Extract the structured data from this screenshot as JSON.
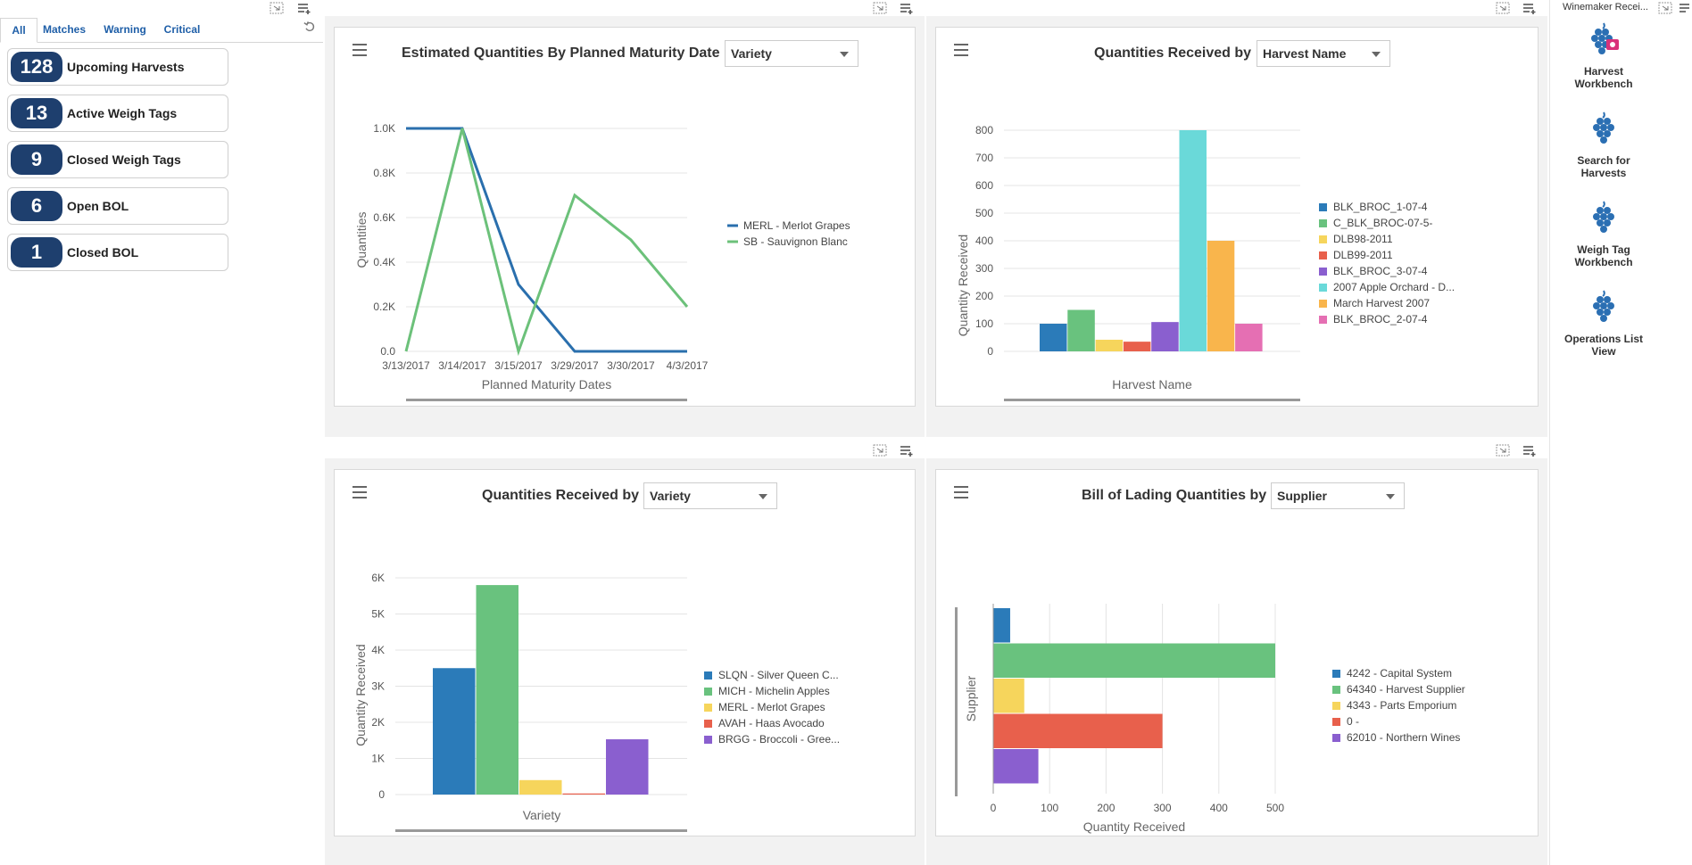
{
  "filters": {
    "tabs": [
      {
        "label": "All"
      },
      {
        "label": "Matches"
      },
      {
        "label": "Warning"
      },
      {
        "label": "Critical"
      }
    ]
  },
  "kpis": [
    {
      "value": "128",
      "label": "Upcoming Harvests"
    },
    {
      "value": "13",
      "label": "Active Weigh Tags"
    },
    {
      "value": "9",
      "label": "Closed Weigh Tags"
    },
    {
      "value": "6",
      "label": "Open BOL"
    },
    {
      "value": "1",
      "label": "Closed BOL"
    }
  ],
  "panels": {
    "p1": {
      "title": "Estimated Quantities By Planned Maturity Date",
      "select": "Variety"
    },
    "p2": {
      "title": "Quantities Received by",
      "select": "Harvest Name"
    },
    "p3": {
      "title": "Quantities Received by",
      "select": "Variety"
    },
    "p4": {
      "title": "Bill of Lading Quantities by",
      "select": "Supplier"
    }
  },
  "quick_launch": {
    "title": "Winemaker Recei...",
    "items": [
      {
        "line1": "Harvest",
        "line2": "Workbench"
      },
      {
        "line1": "Search for",
        "line2": "Harvests"
      },
      {
        "line1": "Weigh Tag",
        "line2": "Workbench"
      },
      {
        "line1": "Operations List",
        "line2": "View"
      }
    ]
  },
  "chart_data": [
    {
      "id": "chart1",
      "type": "line",
      "title": "Estimated Quantities By Planned Maturity Date",
      "xlabel": "Planned Maturity Dates",
      "ylabel": "Quantities",
      "categories": [
        "3/13/2017",
        "3/14/2017",
        "3/15/2017",
        "3/29/2017",
        "3/30/2017",
        "4/3/2017"
      ],
      "ylim": [
        0,
        1000
      ],
      "yticks": [
        0,
        200,
        400,
        600,
        800,
        1000
      ],
      "ytick_labels": [
        "0.0",
        "0.2K",
        "0.4K",
        "0.6K",
        "0.8K",
        "1.0K"
      ],
      "series": [
        {
          "name": "MERL - Merlot Grapes",
          "color": "#2a6fad",
          "values": [
            1000,
            1000,
            300,
            0,
            0,
            0
          ]
        },
        {
          "name": "SB - Sauvignon Blanc",
          "color": "#6cc17a",
          "values": [
            0,
            1000,
            0,
            700,
            500,
            200
          ]
        }
      ]
    },
    {
      "id": "chart2",
      "type": "bar",
      "title": "Quantities Received by Harvest Name",
      "xlabel": "Harvest Name",
      "ylabel": "Quantity Received",
      "ylim": [
        0,
        800
      ],
      "yticks": [
        0,
        100,
        200,
        300,
        400,
        500,
        600,
        700,
        800
      ],
      "series": [
        {
          "name": "BLK_BROC_1-07-4",
          "color": "#2b7bb9",
          "value": 100
        },
        {
          "name": "C_BLK_BROC-07-5-",
          "color": "#69c27e",
          "value": 150
        },
        {
          "name": "DLB98-2011",
          "color": "#f6d55c",
          "value": 42
        },
        {
          "name": "DLB99-2011",
          "color": "#e8604c",
          "value": 35
        },
        {
          "name": "BLK_BROC_3-07-4",
          "color": "#8a5fcf",
          "value": 106
        },
        {
          "name": "2007 Apple Orchard - D...",
          "color": "#6ad9d9",
          "value": 800
        },
        {
          "name": "March Harvest 2007",
          "color": "#f9b54c",
          "value": 400
        },
        {
          "name": "BLK_BROC_2-07-4",
          "color": "#e56fb3",
          "value": 100
        }
      ]
    },
    {
      "id": "chart3",
      "type": "bar",
      "title": "Quantities Received by Variety",
      "xlabel": "Variety",
      "ylabel": "Quantity Received",
      "ylim": [
        0,
        6000
      ],
      "yticks": [
        0,
        1000,
        2000,
        3000,
        4000,
        5000,
        6000
      ],
      "ytick_labels": [
        "0",
        "1K",
        "2K",
        "3K",
        "4K",
        "5K",
        "6K"
      ],
      "series": [
        {
          "name": "SLQN - Silver Queen C...",
          "color": "#2b7bb9",
          "value": 3500
        },
        {
          "name": "MICH - Michelin Apples",
          "color": "#69c27e",
          "value": 5800
        },
        {
          "name": "MERL - Merlot Grapes",
          "color": "#f6d55c",
          "value": 400
        },
        {
          "name": "AVAH - Haas Avocado",
          "color": "#e8604c",
          "value": 30
        },
        {
          "name": "BRGG - Broccoli - Gree...",
          "color": "#8a5fcf",
          "value": 1530
        }
      ]
    },
    {
      "id": "chart4",
      "type": "bar",
      "orientation": "horizontal",
      "title": "Bill of Lading Quantities by Supplier",
      "xlabel": "Quantity Received",
      "ylabel": "Supplier",
      "xlim": [
        0,
        500
      ],
      "xticks": [
        0,
        100,
        200,
        300,
        400,
        500
      ],
      "series": [
        {
          "name": "4242 - Capital System",
          "color": "#2b7bb9",
          "value": 30
        },
        {
          "name": "64340 - Harvest Supplier",
          "color": "#69c27e",
          "value": 500
        },
        {
          "name": "4343 - Parts Emporium",
          "color": "#f6d55c",
          "value": 55
        },
        {
          "name": "0 -",
          "color": "#e8604c",
          "value": 300
        },
        {
          "name": "62010 - Northern Wines",
          "color": "#8a5fcf",
          "value": 80
        }
      ]
    }
  ]
}
